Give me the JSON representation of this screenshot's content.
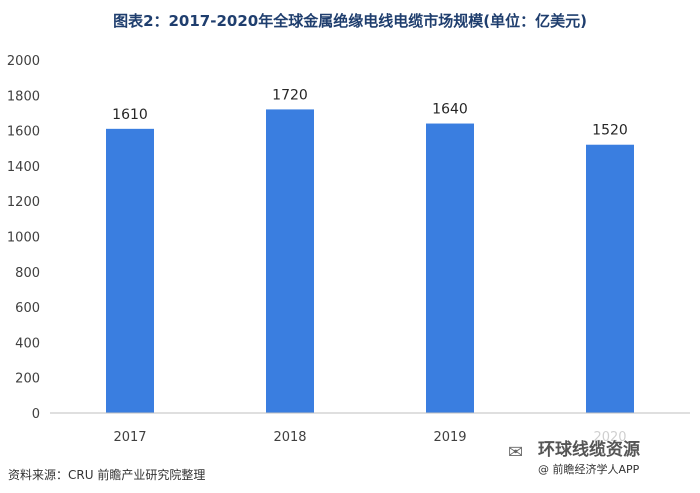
{
  "chart_data": {
    "type": "bar",
    "title": "图表2：2017-2020年全球金属绝缘电线电缆市场规模(单位：亿美元)",
    "categories": [
      "2017",
      "2018",
      "2019",
      "2020"
    ],
    "values": [
      1610,
      1720,
      1640,
      1520
    ],
    "data_labels": [
      "1610",
      "1720",
      "1640",
      "1520"
    ],
    "ylim": [
      0,
      2000
    ],
    "yticks": [
      0,
      200,
      400,
      600,
      800,
      1000,
      1200,
      1400,
      1600,
      1800,
      2000
    ],
    "grid": false,
    "bar_color": "#3a7ee0"
  },
  "footer": {
    "source": "资料来源：CRU 前瞻产业研究院整理",
    "watermark_name": "环球线缆资源",
    "watermark_sub": "@ 前瞻经济学人APP",
    "watermark_icon": "wechat-icon"
  }
}
